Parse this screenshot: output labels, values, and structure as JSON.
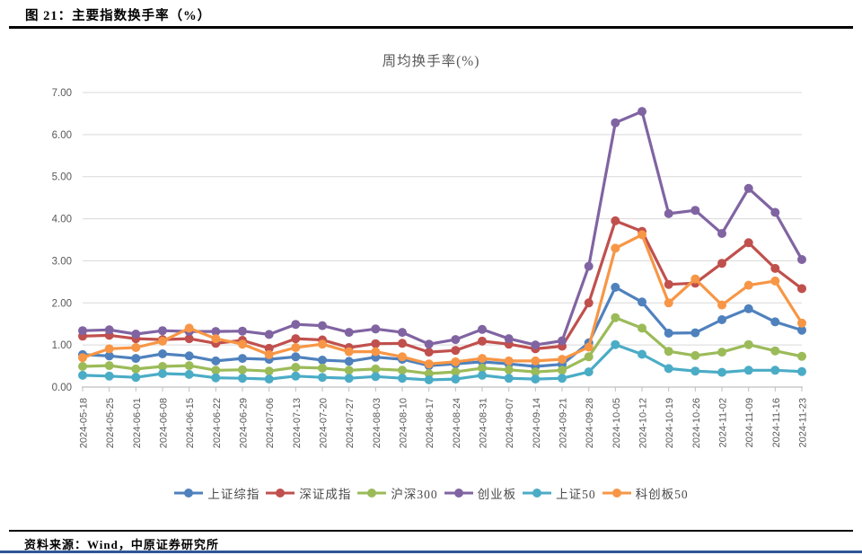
{
  "page": {
    "caption": "图 21：主要指数换手率（%）",
    "source_label": "资料来源：Wind，中原证券研究所",
    "accent_bar_color": "#2F5597"
  },
  "chart_data": {
    "type": "line",
    "title": "周均换手率(%)",
    "xlabel": "",
    "ylabel": "",
    "ylim": [
      0,
      7
    ],
    "ytick_labels": [
      "0.00",
      "1.00",
      "2.00",
      "3.00",
      "4.00",
      "5.00",
      "6.00",
      "7.00"
    ],
    "grid": true,
    "legend_position": "bottom",
    "axis_text_color": "#595959",
    "gridline_color": "#D9D9D9",
    "axis_line_color": "#BFBFBF",
    "categories": [
      "2024-05-18",
      "2024-05-25",
      "2024-06-01",
      "2024-06-08",
      "2024-06-15",
      "2024-06-22",
      "2024-06-29",
      "2024-07-06",
      "2024-07-13",
      "2024-07-20",
      "2024-07-27",
      "2024-08-03",
      "2024-08-10",
      "2024-08-17",
      "2024-08-24",
      "2024-08-31",
      "2024-09-07",
      "2024-09-14",
      "2024-09-21",
      "2024-09-28",
      "2024-10-05",
      "2024-10-12",
      "2024-10-19",
      "2024-10-26",
      "2024-11-02",
      "2024-11-09",
      "2024-11-16",
      "2024-11-23"
    ],
    "series": [
      {
        "name": "上证综指",
        "color": "#4F81BD",
        "values": [
          0.77,
          0.74,
          0.68,
          0.79,
          0.74,
          0.62,
          0.68,
          0.66,
          0.72,
          0.64,
          0.61,
          0.71,
          0.66,
          0.51,
          0.55,
          0.6,
          0.55,
          0.49,
          0.54,
          1.05,
          2.37,
          2.02,
          1.28,
          1.29,
          1.6,
          1.86,
          1.55,
          1.35
        ]
      },
      {
        "name": "深证成指",
        "color": "#C0504D",
        "values": [
          1.21,
          1.23,
          1.15,
          1.13,
          1.15,
          1.04,
          1.11,
          0.92,
          1.15,
          1.12,
          0.94,
          1.03,
          1.04,
          0.83,
          0.87,
          1.09,
          1.02,
          0.91,
          0.97,
          2.0,
          3.95,
          3.7,
          2.44,
          2.47,
          2.94,
          3.43,
          2.82,
          2.34
        ]
      },
      {
        "name": "沪深300",
        "color": "#9BBB59",
        "values": [
          0.49,
          0.51,
          0.43,
          0.49,
          0.51,
          0.4,
          0.41,
          0.38,
          0.47,
          0.45,
          0.4,
          0.43,
          0.4,
          0.32,
          0.36,
          0.45,
          0.41,
          0.36,
          0.4,
          0.72,
          1.65,
          1.4,
          0.85,
          0.75,
          0.83,
          1.01,
          0.86,
          0.73
        ]
      },
      {
        "name": "创业板",
        "color": "#8064A2",
        "values": [
          1.34,
          1.36,
          1.26,
          1.34,
          1.32,
          1.32,
          1.33,
          1.25,
          1.49,
          1.46,
          1.3,
          1.38,
          1.3,
          1.02,
          1.13,
          1.37,
          1.15,
          1.0,
          1.1,
          2.87,
          6.28,
          6.55,
          4.12,
          4.2,
          3.65,
          4.72,
          4.15,
          3.03
        ]
      },
      {
        "name": "上证50",
        "color": "#4BACC6",
        "values": [
          0.28,
          0.26,
          0.23,
          0.32,
          0.3,
          0.22,
          0.21,
          0.19,
          0.26,
          0.23,
          0.21,
          0.25,
          0.21,
          0.17,
          0.19,
          0.28,
          0.21,
          0.19,
          0.21,
          0.36,
          1.01,
          0.78,
          0.44,
          0.38,
          0.35,
          0.4,
          0.4,
          0.37
        ]
      },
      {
        "name": "科创板50",
        "color": "#F79646",
        "values": [
          0.7,
          0.91,
          0.94,
          1.09,
          1.4,
          1.15,
          1.02,
          0.77,
          0.94,
          1.02,
          0.84,
          0.84,
          0.72,
          0.55,
          0.6,
          0.68,
          0.62,
          0.62,
          0.66,
          0.95,
          3.3,
          3.62,
          2.0,
          2.57,
          1.95,
          2.42,
          2.52,
          1.52
        ]
      }
    ]
  }
}
